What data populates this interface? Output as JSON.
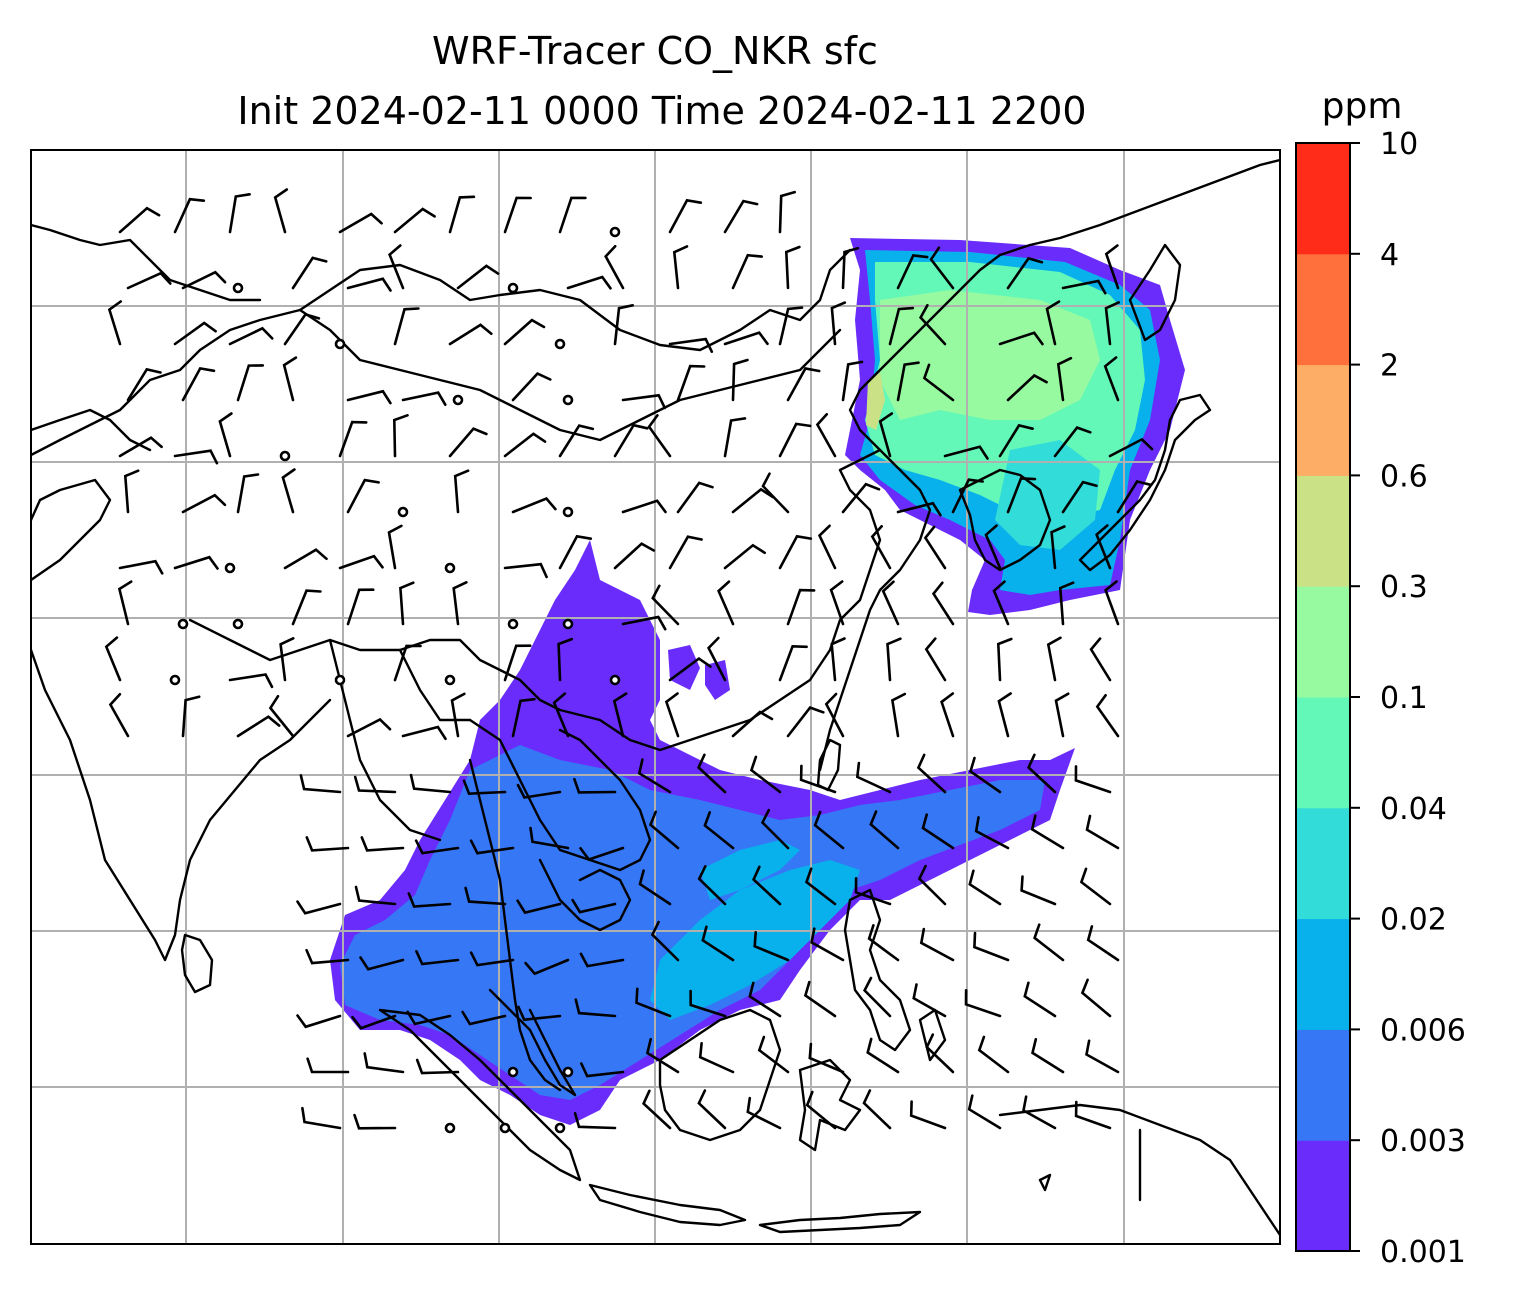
{
  "title": {
    "line1": "WRF-Tracer CO_NKR sfc",
    "line2": "Init 2024-02-11 0000 Time 2024-02-11 2200"
  },
  "colorbar": {
    "unit": "ppm",
    "levels": [
      "0.001",
      "0.003",
      "0.006",
      "0.02",
      "0.04",
      "0.1",
      "0.3",
      "0.6",
      "2",
      "4",
      "10"
    ],
    "colors": [
      "#6a2cfb",
      "#3677f6",
      "#08b0ec",
      "#32dcd8",
      "#64f8b8",
      "#98faa0",
      "#cbe186",
      "#fdad65",
      "#ff703c",
      "#ff2c1a"
    ]
  },
  "map": {
    "background": "#ffffff",
    "gridlines": true,
    "grid_color": "#b0b0b0",
    "field_colors": {
      "purple": "#6a2cfb",
      "blue": "#3677f6",
      "cyan": "#08b0ec",
      "teal": "#32dcd8",
      "green": "#64f8b8",
      "lightgreen": "#98faa0"
    }
  }
}
